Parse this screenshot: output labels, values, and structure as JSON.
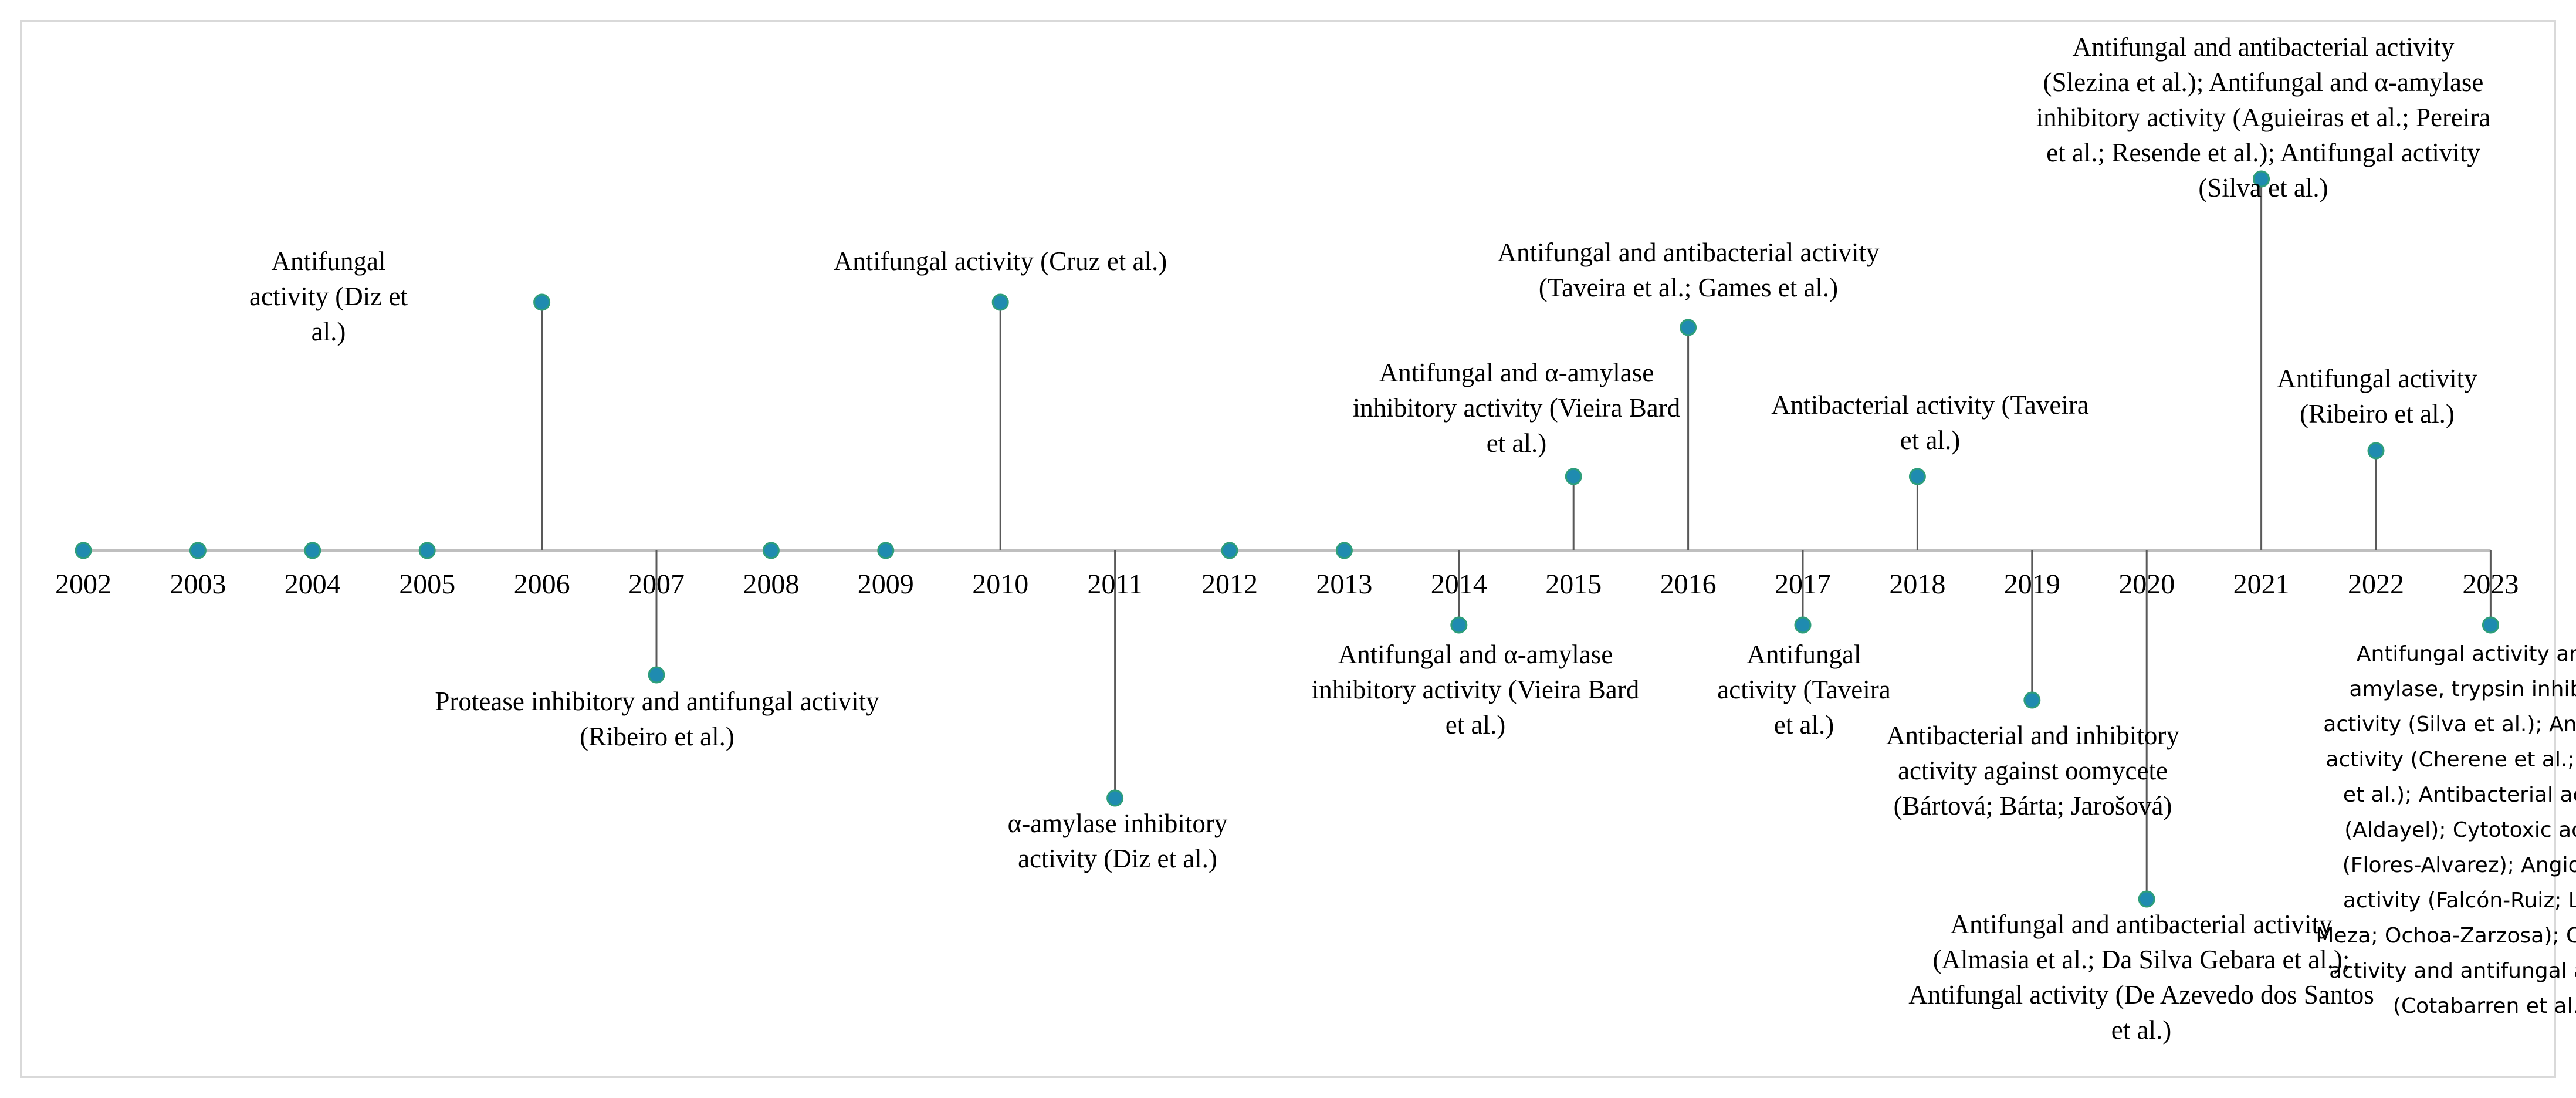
{
  "timeline": {
    "years": [
      "2002",
      "2003",
      "2004",
      "2005",
      "2006",
      "2007",
      "2008",
      "2009",
      "2010",
      "2011",
      "2012",
      "2013",
      "2014",
      "2015",
      "2016",
      "2017",
      "2018",
      "2019",
      "2020",
      "2021",
      "2022",
      "2023"
    ],
    "colors": {
      "axis": "#bfbfbf",
      "stem": "#595959",
      "marker": "#1f8bb0",
      "marker_edge": "#2e9e7a"
    },
    "events": [
      {
        "year": "2006",
        "label": "Antifungal activity (Diz et al.)"
      },
      {
        "year": "2007",
        "label": "Protease inhibitory and antifungal activity (Ribeiro et al.)"
      },
      {
        "year": "2010",
        "label": "Antifungal activity (Cruz et al.)"
      },
      {
        "year": "2011",
        "label": "α-amylase inhibitory activity (Diz et al.)"
      },
      {
        "year": "2014",
        "label": "Antifungal and α-amylase inhibitory activity (Vieira Bard et al.)"
      },
      {
        "year": "2015",
        "label": "Antifungal and α-amylase inhibitory activity (Vieira Bard et al.)"
      },
      {
        "year": "2016",
        "label": "Antifungal and antibacterial activity (Taveira et al.; Games et al.)"
      },
      {
        "year": "2017",
        "label": "Antifungal activity (Taveira et al.)"
      },
      {
        "year": "2018",
        "label": "Antibacterial activity (Taveira et al.)"
      },
      {
        "year": "2019",
        "label": "Antibacterial and inhibitory activity against oomycete (Bártová; Bárta; Jarošová)"
      },
      {
        "year": "2020",
        "label": "Antifungal and antibacterial activity (Almasia et al.; Da Silva Gebara et al.); Antifungal activity (De Azevedo dos Santos et al.)"
      },
      {
        "year": "2021",
        "label": "Antifungal and antibacterial activity (Slezina et al.); Antifungal and α-amylase inhibitory activity (Aguieiras et al.; Pereira et al.; Resende et al.); Antifungal activity (Silva et al.)"
      },
      {
        "year": "2022",
        "label": "Antifungal activity (Ribeiro et al.)"
      },
      {
        "year": "2023",
        "label": "Antifungal activity and α-amylase, trypsin inhibitory activity (Silva et al.); Antifungal activity (Cherene et al.; Pereira et al.); Antibacterial activity (Aldayel); Cytotoxic activity (Flores-Alvarez); Angiogenic activity (Falcón-Ruiz; López-Meza; Ochoa-Zarzosa); Cytotoxic activity and antifungal activity (Cotabarren et al.)"
      }
    ]
  }
}
